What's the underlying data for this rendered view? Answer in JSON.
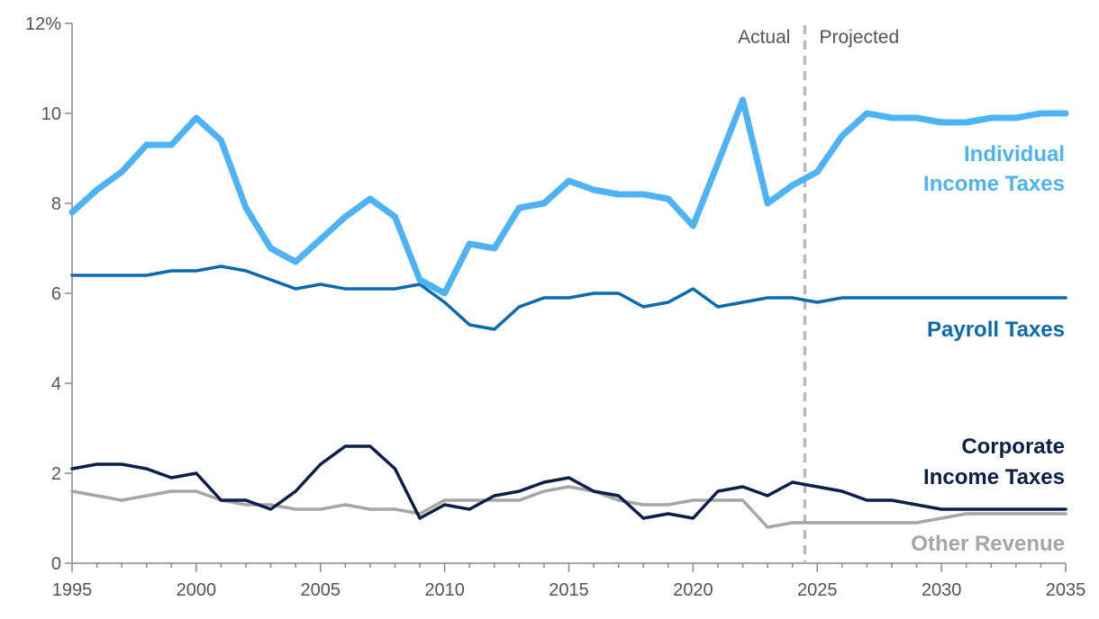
{
  "chart_data": {
    "type": "line",
    "title": "",
    "xlabel": "",
    "ylabel": "",
    "xlim": [
      1995,
      2035
    ],
    "ylim": [
      0,
      12
    ],
    "x_ticks": [
      1995,
      2000,
      2005,
      2010,
      2015,
      2020,
      2025,
      2030,
      2035
    ],
    "y_ticks": [
      0,
      2,
      4,
      6,
      8,
      10,
      12
    ],
    "y_tick_labels": [
      "0",
      "2",
      "4",
      "6",
      "8",
      "10",
      "12%"
    ],
    "grid": false,
    "divider": {
      "x": 2024.5,
      "left_label": "Actual",
      "right_label": "Projected",
      "color": "#bbbbbb"
    },
    "x": [
      1995,
      1996,
      1997,
      1998,
      1999,
      2000,
      2001,
      2002,
      2003,
      2004,
      2005,
      2006,
      2007,
      2008,
      2009,
      2010,
      2011,
      2012,
      2013,
      2014,
      2015,
      2016,
      2017,
      2018,
      2019,
      2020,
      2021,
      2022,
      2023,
      2024,
      2025,
      2026,
      2027,
      2028,
      2029,
      2030,
      2031,
      2032,
      2033,
      2034,
      2035
    ],
    "series": [
      {
        "name_lines": [
          "Individual",
          "Income Taxes"
        ],
        "color": "#4db3f5",
        "values": [
          7.8,
          8.3,
          8.7,
          9.3,
          9.3,
          9.9,
          9.4,
          7.9,
          7.0,
          6.7,
          7.2,
          7.7,
          8.1,
          7.7,
          6.3,
          6.0,
          7.1,
          7.0,
          7.9,
          8.0,
          8.5,
          8.3,
          8.2,
          8.2,
          8.1,
          7.5,
          8.9,
          10.3,
          8.0,
          8.4,
          8.7,
          9.5,
          10.0,
          9.9,
          9.9,
          9.8,
          9.8,
          9.9,
          9.9,
          10.0,
          10.0
        ]
      },
      {
        "name_lines": [
          "Payroll Taxes"
        ],
        "color": "#0a6ab0",
        "values": [
          6.4,
          6.4,
          6.4,
          6.4,
          6.5,
          6.5,
          6.6,
          6.5,
          6.3,
          6.1,
          6.2,
          6.1,
          6.1,
          6.1,
          6.2,
          5.8,
          5.3,
          5.2,
          5.7,
          5.9,
          5.9,
          6.0,
          6.0,
          5.7,
          5.8,
          6.1,
          5.7,
          5.8,
          5.9,
          5.9,
          5.8,
          5.9,
          5.9,
          5.9,
          5.9,
          5.9,
          5.9,
          5.9,
          5.9,
          5.9,
          5.9
        ]
      },
      {
        "name_lines": [
          "Corporate",
          "Income Taxes"
        ],
        "color": "#0c1f47",
        "values": [
          2.1,
          2.2,
          2.2,
          2.1,
          1.9,
          2.0,
          1.4,
          1.4,
          1.2,
          1.6,
          2.2,
          2.6,
          2.6,
          2.1,
          1.0,
          1.3,
          1.2,
          1.5,
          1.6,
          1.8,
          1.9,
          1.6,
          1.5,
          1.0,
          1.1,
          1.0,
          1.6,
          1.7,
          1.5,
          1.8,
          1.7,
          1.6,
          1.4,
          1.4,
          1.3,
          1.2,
          1.2,
          1.2,
          1.2,
          1.2,
          1.2
        ]
      },
      {
        "name_lines": [
          "Other Revenue"
        ],
        "color": "#a6a6a6",
        "values": [
          1.6,
          1.5,
          1.4,
          1.5,
          1.6,
          1.6,
          1.4,
          1.3,
          1.3,
          1.2,
          1.2,
          1.3,
          1.2,
          1.2,
          1.1,
          1.4,
          1.4,
          1.4,
          1.4,
          1.6,
          1.7,
          1.6,
          1.4,
          1.3,
          1.3,
          1.4,
          1.4,
          1.4,
          0.8,
          0.9,
          0.9,
          0.9,
          0.9,
          0.9,
          0.9,
          1.0,
          1.1,
          1.1,
          1.1,
          1.1,
          1.1
        ]
      }
    ]
  }
}
